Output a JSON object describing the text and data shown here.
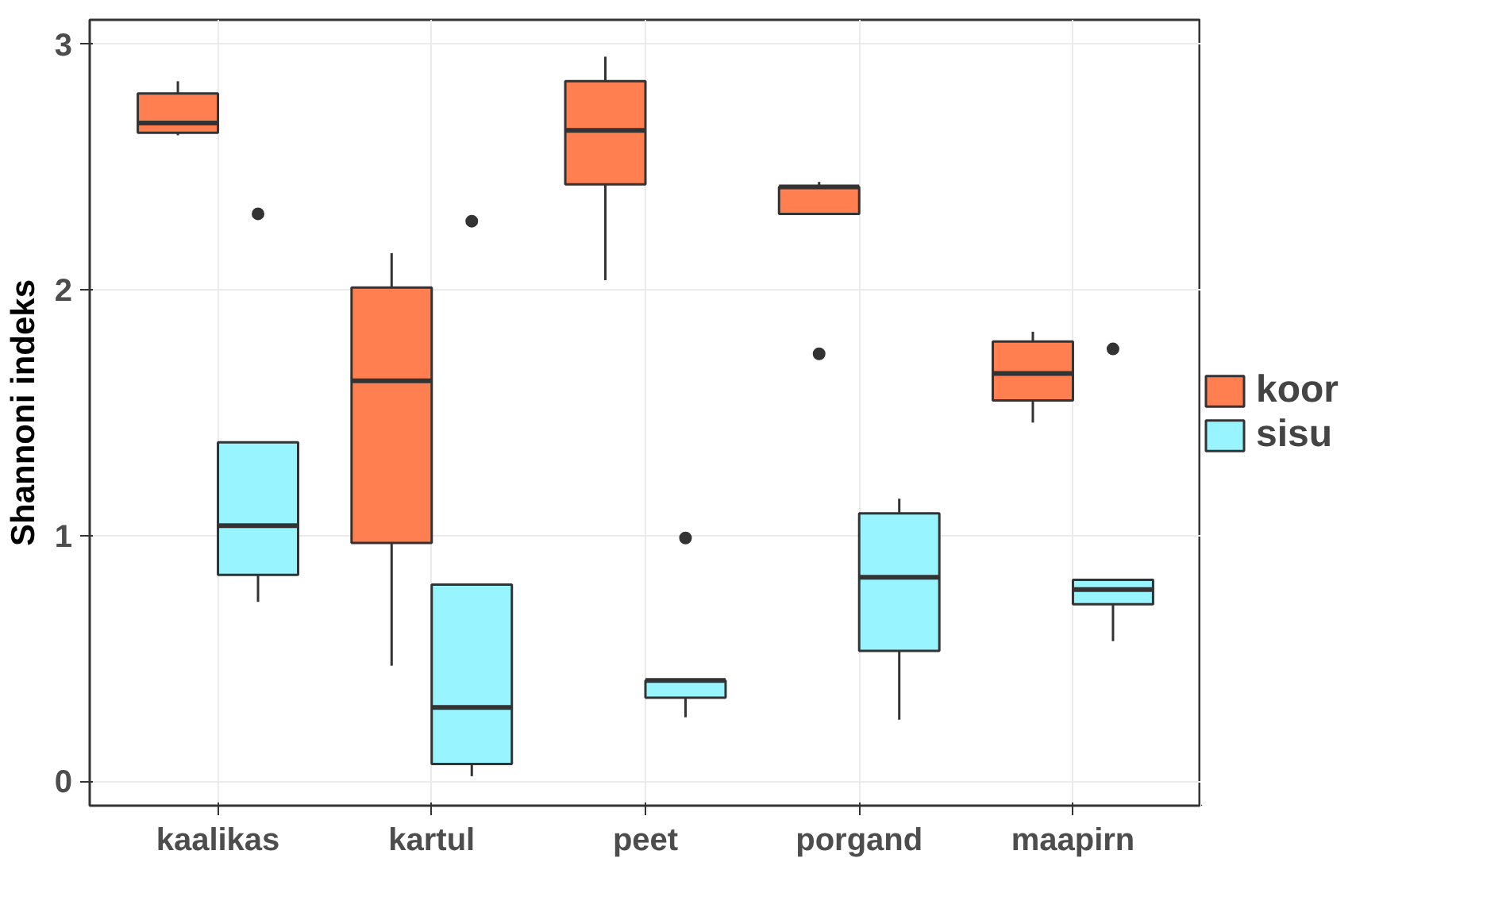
{
  "chart_data": {
    "type": "box",
    "ylabel": "Shannoni indeks",
    "categories": [
      "kaalikas",
      "kartul",
      "peet",
      "porgand",
      "maapirn"
    ],
    "ylim": [
      -0.1,
      3.1
    ],
    "yticks": [
      0,
      1,
      2,
      3
    ],
    "grid": true,
    "legend": "right",
    "series": [
      {
        "name": "koor",
        "color": "#ff7f50",
        "boxes": [
          {
            "low": 2.63,
            "q1": 2.64,
            "median": 2.68,
            "q3": 2.8,
            "high": 2.85
          },
          {
            "low": 0.47,
            "q1": 0.97,
            "median": 1.63,
            "q3": 2.01,
            "high": 2.15
          },
          {
            "low": 2.04,
            "q1": 2.43,
            "median": 2.65,
            "q3": 2.85,
            "high": 2.95
          },
          {
            "low": 2.31,
            "q1": 2.31,
            "median": 2.42,
            "q3": 2.42,
            "high": 2.44,
            "outliers": [
              1.74
            ]
          },
          {
            "low": 1.46,
            "q1": 1.55,
            "median": 1.66,
            "q3": 1.79,
            "high": 1.83
          }
        ]
      },
      {
        "name": "sisu",
        "color": "#98f5ff",
        "boxes": [
          {
            "low": 0.73,
            "q1": 0.84,
            "median": 1.04,
            "q3": 1.38,
            "high": 1.38,
            "outliers": [
              2.31
            ]
          },
          {
            "low": 0.02,
            "q1": 0.07,
            "median": 0.3,
            "q3": 0.8,
            "high": 0.8,
            "outliers": [
              2.28
            ]
          },
          {
            "low": 0.26,
            "q1": 0.34,
            "median": 0.41,
            "q3": 0.41,
            "high": 0.41,
            "outliers": [
              0.99
            ]
          },
          {
            "low": 0.25,
            "q1": 0.53,
            "median": 0.83,
            "q3": 1.09,
            "high": 1.15
          },
          {
            "low": 0.57,
            "q1": 0.72,
            "median": 0.78,
            "q3": 0.82,
            "high": 0.82,
            "outliers": [
              1.76
            ]
          }
        ]
      }
    ]
  }
}
